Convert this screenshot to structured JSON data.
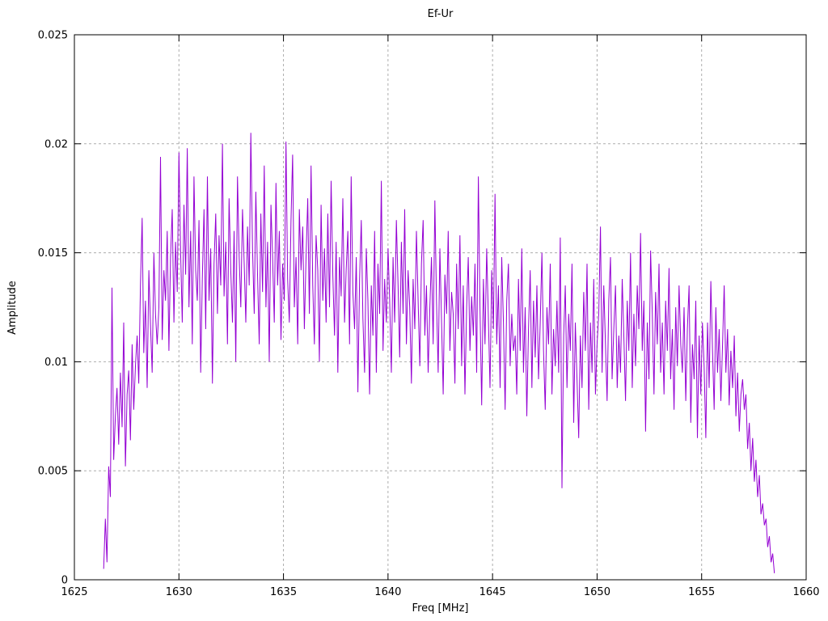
{
  "chart_data": {
    "type": "line",
    "title": "Ef-Ur",
    "xlabel": "Freq [MHz]",
    "ylabel": "Amplitude",
    "xlim": [
      1625,
      1660
    ],
    "ylim": [
      0,
      0.025
    ],
    "grid": true,
    "legend_position": "none",
    "line_color": "#9400d3",
    "grid_color": "#adadad",
    "border_color": "#000000",
    "background_color": "#ffffff",
    "x_ticks": [
      {
        "v": 1625,
        "label": "1625"
      },
      {
        "v": 1630,
        "label": "1630"
      },
      {
        "v": 1635,
        "label": "1635"
      },
      {
        "v": 1640,
        "label": "1640"
      },
      {
        "v": 1645,
        "label": "1645"
      },
      {
        "v": 1650,
        "label": "1650"
      },
      {
        "v": 1655,
        "label": "1655"
      },
      {
        "v": 1660,
        "label": "1660"
      }
    ],
    "y_ticks": [
      {
        "v": 0,
        "label": "0"
      },
      {
        "v": 0.005,
        "label": "0.005"
      },
      {
        "v": 0.01,
        "label": "0.01"
      },
      {
        "v": 0.015,
        "label": "0.015"
      },
      {
        "v": 0.02,
        "label": "0.02"
      },
      {
        "v": 0.025,
        "label": "0.025"
      }
    ],
    "series": [
      {
        "name": "Ef-Ur",
        "x_start": 1626.4,
        "x_step": 0.08,
        "y_scale": 0.0001,
        "y": [
          5,
          28,
          8,
          52,
          38,
          134,
          55,
          75,
          88,
          62,
          95,
          70,
          118,
          52,
          85,
          96,
          64,
          108,
          78,
          98,
          112,
          90,
          135,
          166,
          104,
          128,
          88,
          142,
          117,
          95,
          150,
          122,
          108,
          125,
          194,
          110,
          142,
          128,
          160,
          105,
          148,
          170,
          118,
          155,
          132,
          196,
          150,
          118,
          172,
          140,
          198,
          125,
          160,
          108,
          185,
          142,
          128,
          165,
          95,
          138,
          170,
          115,
          185,
          128,
          152,
          90,
          145,
          168,
          122,
          158,
          135,
          200,
          130,
          155,
          108,
          175,
          142,
          118,
          160,
          100,
          185,
          148,
          125,
          170,
          145,
          118,
          162,
          135,
          205,
          152,
          122,
          178,
          140,
          108,
          168,
          132,
          190,
          125,
          155,
          100,
          172,
          148,
          118,
          182,
          135,
          160,
          110,
          145,
          128,
          201,
          138,
          118,
          165,
          195,
          125,
          148,
          108,
          170,
          142,
          162,
          115,
          148,
          175,
          122,
          190,
          135,
          108,
          158,
          142,
          100,
          172,
          128,
          152,
          118,
          168,
          125,
          183,
          140,
          112,
          155,
          95,
          148,
          130,
          175,
          118,
          142,
          160,
          108,
          185,
          132,
          115,
          148,
          86,
          138,
          165,
          120,
          95,
          152,
          128,
          85,
          135,
          112,
          160,
          95,
          145,
          122,
          183,
          105,
          138,
          118,
          152,
          128,
          95,
          148,
          118,
          165,
          135,
          102,
          155,
          122,
          170,
          108,
          142,
          125,
          90,
          138,
          115,
          160,
          128,
          98,
          145,
          165,
          112,
          135,
          95,
          125,
          148,
          108,
          174,
          128,
          95,
          152,
          118,
          85,
          140,
          122,
          160,
          105,
          132,
          122,
          90,
          145,
          115,
          158,
          98,
          135,
          85,
          125,
          148,
          105,
          130,
          112,
          145,
          95,
          185,
          125,
          80,
          138,
          108,
          152,
          120,
          88,
          142,
          115,
          177,
          108,
          135,
          88,
          148,
          118,
          78,
          128,
          145,
          98,
          122,
          105,
          112,
          85,
          138,
          105,
          152,
          95,
          125,
          75,
          115,
          142,
          88,
          128,
          102,
          135,
          92,
          118,
          150,
          105,
          78,
          125,
          108,
          145,
          85,
          115,
          98,
          128,
          95,
          157,
          42,
          112,
          135,
          88,
          122,
          105,
          145,
          72,
          118,
          92,
          65,
          112,
          88,
          132,
          105,
          145,
          78,
          118,
          95,
          138,
          85,
          108,
          122,
          162,
          95,
          135,
          108,
          82,
          128,
          148,
          92,
          115,
          135,
          88,
          112,
          95,
          138,
          112,
          82,
          128,
          105,
          150,
          88,
          122,
          98,
          135,
          115,
          159,
          105,
          128,
          68,
          118,
          92,
          151,
          122,
          85,
          132,
          108,
          145,
          95,
          118,
          85,
          128,
          105,
          143,
          92,
          115,
          78,
          125,
          98,
          135,
          108,
          95,
          125,
          82,
          115,
          135,
          72,
          108,
          92,
          128,
          65,
          112,
          85,
          118,
          98,
          65,
          118,
          88,
          137,
          105,
          78,
          125,
          95,
          115,
          82,
          108,
          135,
          95,
          115,
          80,
          105,
          88,
          112,
          75,
          95,
          68,
          85,
          92,
          78,
          85,
          60,
          72,
          50,
          65,
          45,
          55,
          38,
          48,
          30,
          35,
          25,
          28,
          15,
          20,
          8,
          12,
          3
        ]
      }
    ]
  }
}
